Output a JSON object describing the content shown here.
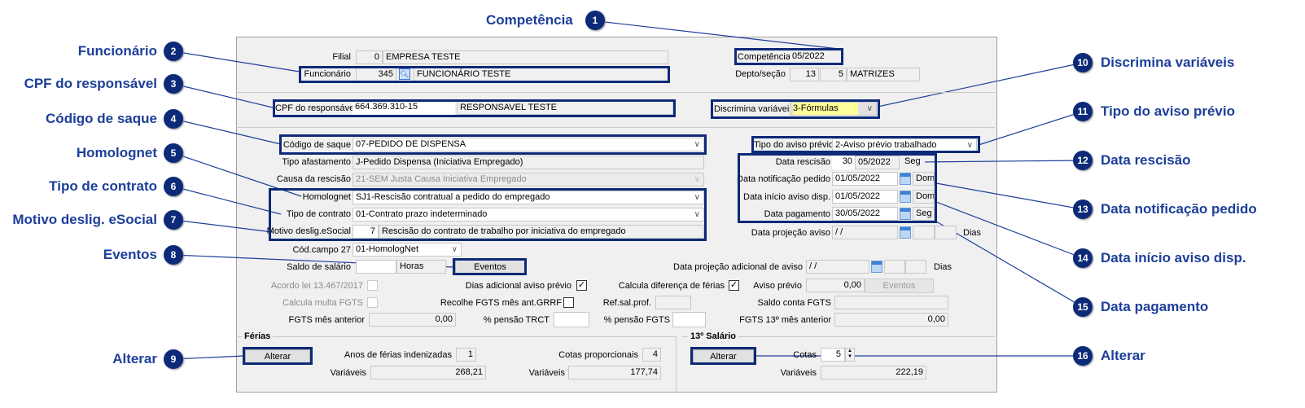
{
  "callouts": [
    {
      "num": "1",
      "label": "Competência"
    },
    {
      "num": "2",
      "label": "Funcionário"
    },
    {
      "num": "3",
      "label": "CPF do responsável"
    },
    {
      "num": "4",
      "label": "Código de saque"
    },
    {
      "num": "5",
      "label": "Homolognet"
    },
    {
      "num": "6",
      "label": "Tipo de contrato"
    },
    {
      "num": "7",
      "label": "Motivo deslig. eSocial"
    },
    {
      "num": "8",
      "label": "Eventos"
    },
    {
      "num": "9",
      "label": "Alterar"
    },
    {
      "num": "10",
      "label": "Discrimina variáveis"
    },
    {
      "num": "11",
      "label": "Tipo do aviso prévio"
    },
    {
      "num": "12",
      "label": "Data rescisão"
    },
    {
      "num": "13",
      "label": "Data notificação pedido"
    },
    {
      "num": "14",
      "label": "Data início aviso disp."
    },
    {
      "num": "15",
      "label": "Data pagamento"
    },
    {
      "num": "16",
      "label": "Alterar"
    }
  ],
  "colors": {
    "callout_border": "#0d2a78",
    "callout_text": "#1d3f9a",
    "highlight_field": "#ffff99"
  },
  "form": {
    "filial": {
      "label": "Filial",
      "code": "0",
      "name": "EMPRESA TESTE"
    },
    "funcionario": {
      "label": "Funcionário",
      "code": "345",
      "name": "FUNCIONÁRIO TESTE",
      "icon": "search-icon"
    },
    "competencia": {
      "label": "Competência",
      "value": "05/2022"
    },
    "depto": {
      "label": "Depto/seção",
      "depto": "13",
      "secao": "5",
      "name": "MATRIZES"
    },
    "cpf": {
      "label": "CPF do responsável",
      "value": "664.369.310-15",
      "name": "RESPONSAVEL TESTE"
    },
    "discrimina": {
      "label": "Discrimina variáveis",
      "value": "3-Fórmulas"
    },
    "codigo_saque": {
      "label": "Código de saque",
      "value": "07-PEDIDO DE DISPENSA"
    },
    "tipo_afastamento": {
      "label": "Tipo afastamento",
      "value": "J-Pedido Dispensa (Iniciativa Empregado)"
    },
    "causa_rescisao": {
      "label": "Causa da rescisão",
      "value": "21-SEM Justa Causa Iniciativa Empregado"
    },
    "homolognet": {
      "label": "Homolognet",
      "value": "SJ1-Rescisão contratual a pedido do empregado"
    },
    "tipo_contrato": {
      "label": "Tipo de contrato",
      "value": "01-Contrato prazo indeterminado"
    },
    "motivo": {
      "label": "Motivo deslig.eSocial",
      "code": "7",
      "text": "Rescisão do contrato de trabalho por iniciativa do empregado"
    },
    "cod_campo27": {
      "label": "Cód.campo 27",
      "value": "01-HomologNet"
    },
    "saldo": {
      "label": "Saldo de salário",
      "value": "",
      "units": "Horas",
      "button": "Eventos"
    },
    "tipo_aviso": {
      "label": "Tipo do aviso prévio",
      "value": "2-Aviso prévio trabalhado"
    },
    "data_rescisao": {
      "label": "Data rescisão",
      "day": "30",
      "month": "05/2022",
      "weekday": "Seg"
    },
    "data_notificacao": {
      "label": "Data notificação pedido",
      "value": "01/05/2022",
      "weekday": "Dom"
    },
    "data_inicio": {
      "label": "Data início aviso disp.",
      "value": "01/05/2022",
      "weekday": "Dom"
    },
    "data_pagamento": {
      "label": "Data pagamento",
      "value": "30/05/2022",
      "weekday": "Seg"
    },
    "data_projecao": {
      "label": "Data projeção aviso",
      "value": " / /",
      "dias": "Dias"
    },
    "data_proj_adic": {
      "label": "Data projeção adicional de aviso",
      "value": " / /",
      "dias": "Dias"
    },
    "acordo": {
      "label": "Acordo lei 13.467/2017",
      "checked": false
    },
    "dias_adicional": {
      "label": "Dias adicional aviso prévio",
      "checked": true,
      "mark": "✓"
    },
    "calcula_dif": {
      "label": "Calcula diferença de férias",
      "checked": true,
      "mark": "✓"
    },
    "aviso_previo": {
      "label": "Aviso prévio",
      "value": "0,00",
      "button": "Eventos"
    },
    "multa_fgts": {
      "label": "Calcula multa FGTS",
      "checked": false
    },
    "recolhe_fgts": {
      "label": "Recolhe FGTS mês ant.GRRF",
      "checked": false
    },
    "ref_sal": {
      "label": "Ref.sal.prof.",
      "value": ""
    },
    "saldo_fgts": {
      "label": "Saldo conta FGTS",
      "value": ""
    },
    "fgts_anterior": {
      "label": "FGTS mês anterior",
      "value": "0,00"
    },
    "pensao_trct": {
      "label": "% pensão TRCT",
      "value": ""
    },
    "pensao_fgts": {
      "label": "% pensão FGTS",
      "value": ""
    },
    "fgts13_anterior": {
      "label": "FGTS 13º mês anterior",
      "value": "0,00"
    }
  },
  "ferias": {
    "title": "Férias",
    "button": "Alterar",
    "anos_label": "Anos de férias indenizadas",
    "anos": "1",
    "cotas_label": "Cotas proporcionais",
    "cotas": "4",
    "var_label": "Variáveis",
    "var1": "268,21",
    "var2_label": "Variáveis",
    "var2": "177,74"
  },
  "decimo": {
    "title": "13º Salário",
    "button": "Alterar",
    "cotas_label": "Cotas",
    "cotas": "5",
    "var_label": "Variáveis",
    "var": "222,19"
  }
}
